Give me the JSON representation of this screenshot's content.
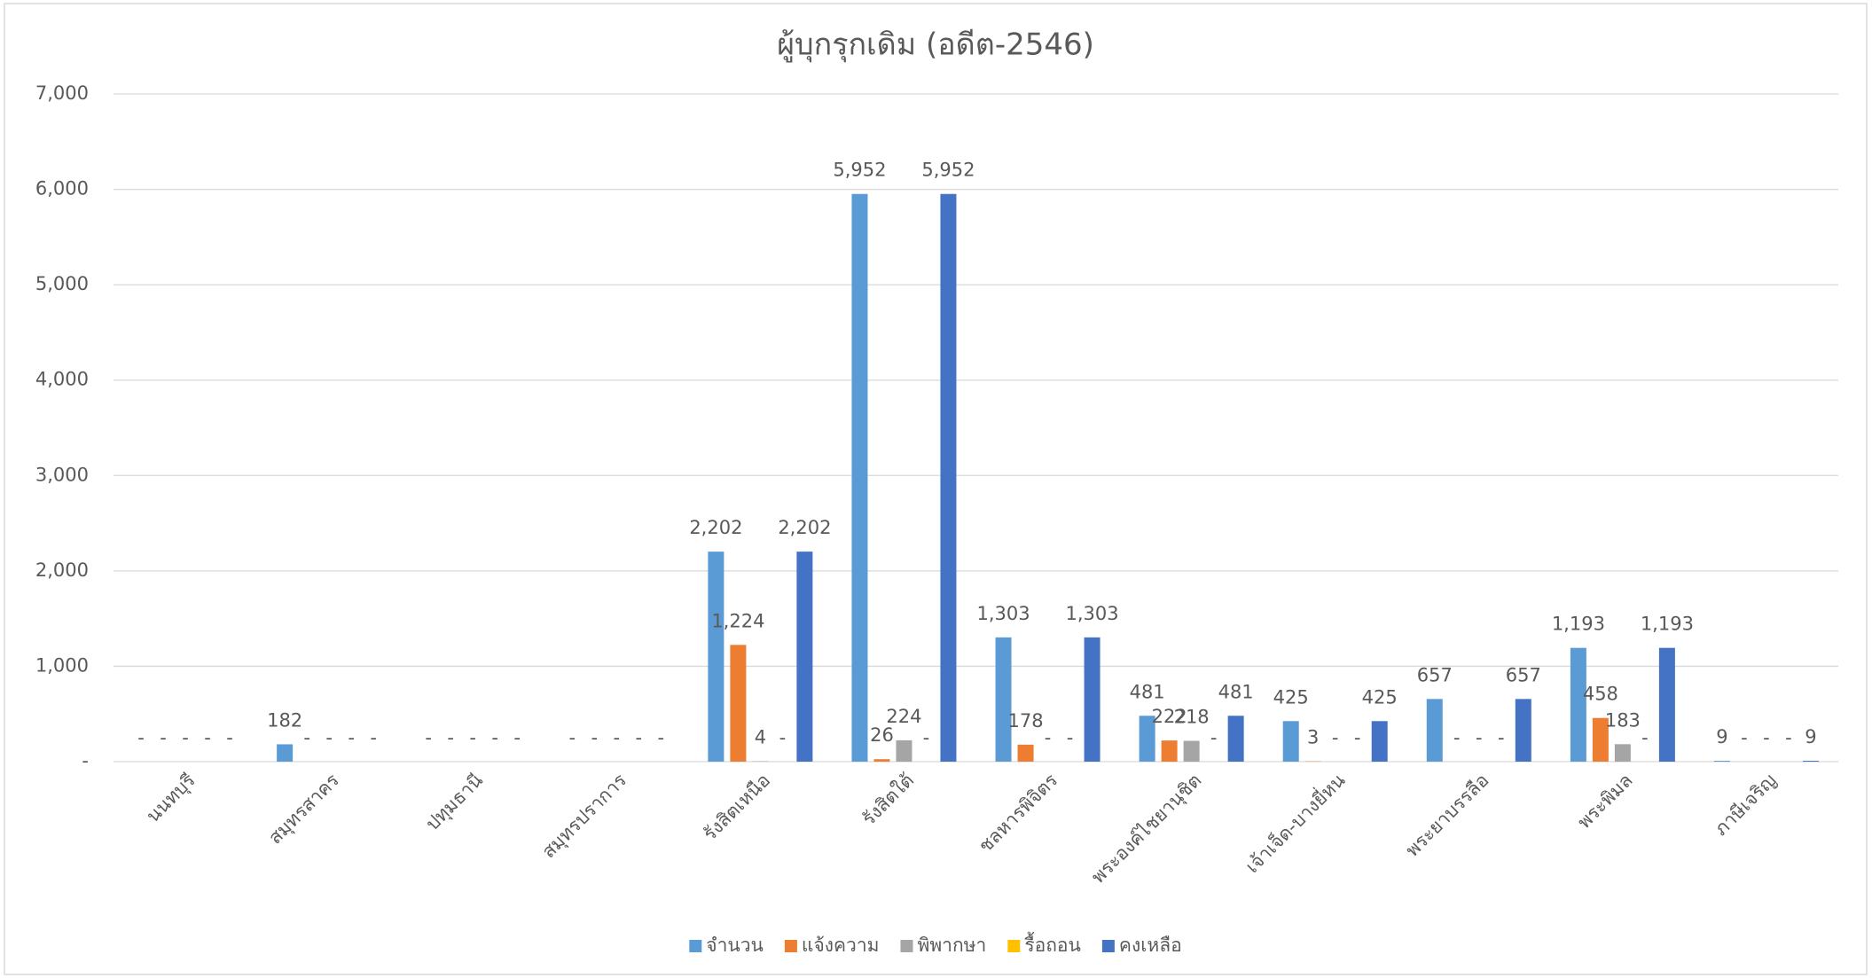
{
  "chart_data": {
    "type": "bar",
    "title": "ผู้บุกรุกเดิม (อดีต-2546)",
    "categories": [
      "นนทบุรี",
      "สมุทรสาคร",
      "ปทุมธานี",
      "สมุทรปราการ",
      "รังสิตเหนือ",
      "รังสิตใต้",
      "ชลหารพิจิตร",
      "พระองค์ไชยานุชิต",
      "เจ้าเจ็ด-บางยี่หน",
      "พระยาบรรลือ",
      "พระพิมล",
      "ภาษีเจริญ"
    ],
    "series": [
      {
        "name": "จำนวน",
        "color": "#5b9bd5",
        "values": [
          0,
          182,
          0,
          0,
          2202,
          5952,
          1303,
          481,
          425,
          657,
          1193,
          9
        ],
        "value_labels": [
          "-",
          "182",
          "-",
          "-",
          "2,202",
          "5,952",
          "1,303",
          "481",
          "425",
          "657",
          "1,193",
          "9"
        ]
      },
      {
        "name": "แจ้งความ",
        "color": "#ed7d31",
        "values": [
          0,
          0,
          0,
          0,
          1224,
          26,
          178,
          222,
          3,
          0,
          458,
          0
        ],
        "value_labels": [
          "-",
          "-",
          "-",
          "-",
          "1,224",
          "26",
          "178",
          "222",
          "3",
          "-",
          "458",
          "-"
        ]
      },
      {
        "name": "พิพากษา",
        "color": "#a5a5a5",
        "values": [
          0,
          0,
          0,
          0,
          4,
          224,
          0,
          218,
          0,
          0,
          183,
          0
        ],
        "value_labels": [
          "-",
          "-",
          "-",
          "-",
          "4",
          "224",
          "-",
          "218",
          "-",
          "-",
          "183",
          "-"
        ]
      },
      {
        "name": "รื้อถอน",
        "color": "#ffc000",
        "values": [
          0,
          0,
          0,
          0,
          0,
          0,
          0,
          0,
          0,
          0,
          0,
          0
        ],
        "value_labels": [
          "-",
          "-",
          "-",
          "-",
          "-",
          "-",
          "-",
          "-",
          "-",
          "-",
          "-",
          "-"
        ]
      },
      {
        "name": "คงเหลือ",
        "color": "#4472c4",
        "values": [
          0,
          0,
          0,
          0,
          2202,
          5952,
          1303,
          481,
          425,
          657,
          1193,
          9
        ],
        "value_labels": [
          "-",
          "-",
          "-",
          "-",
          "2,202",
          "5,952",
          "1,303",
          "481",
          "425",
          "657",
          "1,193",
          "9"
        ]
      }
    ],
    "ylim": [
      0,
      7000
    ],
    "yticks": [
      {
        "value": 0,
        "label": "-"
      },
      {
        "value": 1000,
        "label": "1,000"
      },
      {
        "value": 2000,
        "label": "2,000"
      },
      {
        "value": 3000,
        "label": "3,000"
      },
      {
        "value": 4000,
        "label": "4,000"
      },
      {
        "value": 5000,
        "label": "5,000"
      },
      {
        "value": 6000,
        "label": "6,000"
      },
      {
        "value": 7000,
        "label": "7,000"
      }
    ],
    "grid": true,
    "legend": "bottom"
  }
}
